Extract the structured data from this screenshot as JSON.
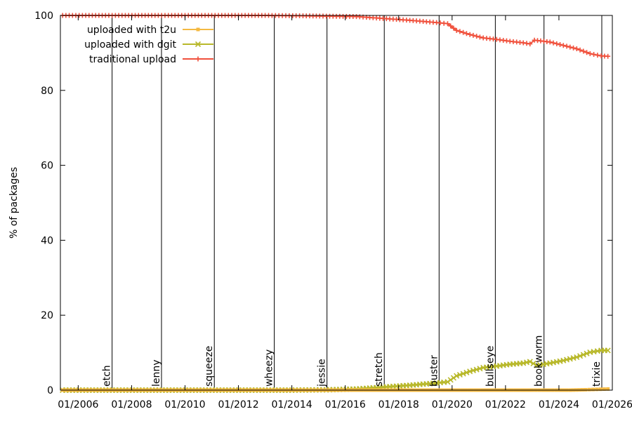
{
  "chart_data": {
    "type": "line",
    "ylabel": "% of packages",
    "ylim": [
      0,
      100
    ],
    "yticks": [
      "0",
      "20",
      "40",
      "60",
      "80",
      "100"
    ],
    "xlim": [
      "2005-05-01",
      "2026-01-01"
    ],
    "xticks": [
      "01/2006",
      "01/2008",
      "01/2010",
      "01/2012",
      "01/2014",
      "01/2016",
      "01/2018",
      "01/2020",
      "01/2022",
      "01/2024",
      "01/2026"
    ],
    "legend_position": "top-left",
    "grid": false,
    "releases": [
      {
        "name": "etch",
        "date": "2007-04-08"
      },
      {
        "name": "lenny",
        "date": "2009-02-14"
      },
      {
        "name": "squeeze",
        "date": "2011-02-06"
      },
      {
        "name": "wheezy",
        "date": "2013-05-04"
      },
      {
        "name": "jessie",
        "date": "2015-04-25"
      },
      {
        "name": "stretch",
        "date": "2017-06-17"
      },
      {
        "name": "buster",
        "date": "2019-07-06"
      },
      {
        "name": "bullseye",
        "date": "2021-08-14"
      },
      {
        "name": "bookworm",
        "date": "2023-06-10"
      },
      {
        "name": "trixie",
        "date": "2025-08-09"
      }
    ],
    "series": [
      {
        "name": "uploaded with t2u",
        "color": "#f4b942",
        "marker": "square",
        "points": [
          [
            "2005-06-01",
            0
          ],
          [
            "2007-01-01",
            0
          ],
          [
            "2009-01-01",
            0
          ],
          [
            "2011-01-01",
            0
          ],
          [
            "2013-01-01",
            0
          ],
          [
            "2015-01-01",
            0
          ],
          [
            "2017-01-01",
            0
          ],
          [
            "2019-01-01",
            0
          ],
          [
            "2021-01-01",
            0
          ],
          [
            "2023-01-01",
            0
          ],
          [
            "2024-06-01",
            0
          ],
          [
            "2025-01-01",
            0.1
          ],
          [
            "2025-06-01",
            0.2
          ],
          [
            "2025-11-01",
            0.3
          ]
        ]
      },
      {
        "name": "uploaded with dgit",
        "color": "#b8b82a",
        "marker": "x",
        "points": [
          [
            "2005-06-01",
            0
          ],
          [
            "2014-01-01",
            0
          ],
          [
            "2015-06-01",
            0.1
          ],
          [
            "2016-06-01",
            0.3
          ],
          [
            "2017-06-01",
            0.8
          ],
          [
            "2018-06-01",
            1.3
          ],
          [
            "2019-06-01",
            1.9
          ],
          [
            "2019-11-01",
            2.2
          ],
          [
            "2020-03-01",
            3.8
          ],
          [
            "2020-09-01",
            5.0
          ],
          [
            "2021-03-01",
            6.0
          ],
          [
            "2021-09-01",
            6.4
          ],
          [
            "2022-03-01",
            6.9
          ],
          [
            "2022-09-01",
            7.2
          ],
          [
            "2022-12-01",
            7.6
          ],
          [
            "2023-03-01",
            6.6
          ],
          [
            "2023-09-01",
            7.2
          ],
          [
            "2024-03-01",
            7.9
          ],
          [
            "2024-09-01",
            8.8
          ],
          [
            "2025-03-01",
            10.1
          ],
          [
            "2025-08-01",
            10.6
          ],
          [
            "2025-11-01",
            10.6
          ]
        ]
      },
      {
        "name": "traditional upload",
        "color": "#f0503c",
        "marker": "plus",
        "points": [
          [
            "2005-06-01",
            100
          ],
          [
            "2009-01-01",
            100
          ],
          [
            "2013-01-01",
            100
          ],
          [
            "2014-06-01",
            99.9
          ],
          [
            "2016-06-01",
            99.7
          ],
          [
            "2017-06-01",
            99.2
          ],
          [
            "2018-06-01",
            98.7
          ],
          [
            "2019-06-01",
            98.1
          ],
          [
            "2019-11-01",
            97.8
          ],
          [
            "2020-03-01",
            96.0
          ],
          [
            "2020-09-01",
            94.9
          ],
          [
            "2021-03-01",
            94.0
          ],
          [
            "2021-09-01",
            93.6
          ],
          [
            "2022-03-01",
            93.1
          ],
          [
            "2022-09-01",
            92.7
          ],
          [
            "2022-12-01",
            92.4
          ],
          [
            "2023-02-01",
            93.4
          ],
          [
            "2023-09-01",
            92.9
          ],
          [
            "2024-03-01",
            92.0
          ],
          [
            "2024-09-01",
            91.1
          ],
          [
            "2025-03-01",
            89.8
          ],
          [
            "2025-08-01",
            89.2
          ],
          [
            "2025-11-01",
            89.1
          ]
        ]
      }
    ]
  }
}
